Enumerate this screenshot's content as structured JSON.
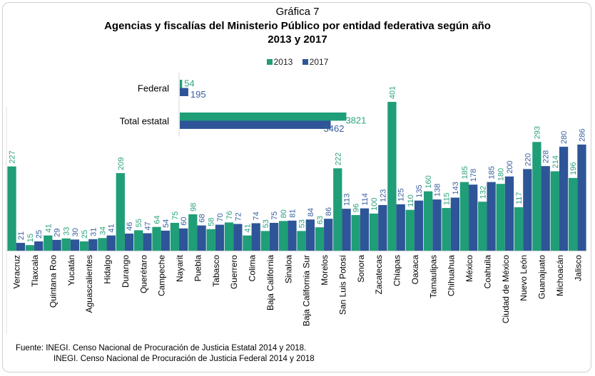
{
  "title": "Gráfica 7",
  "subtitle_line1": "Agencias y fiscalías del Ministerio Público por entidad federativa según año",
  "subtitle_line2": "2013 y 2017",
  "colors": {
    "s2013": "#1f9e78",
    "s2017": "#2e5597",
    "axis": "#d9d9d9"
  },
  "legend": [
    {
      "label": "2013",
      "color": "#1f9e78"
    },
    {
      "label": "2017",
      "color": "#2e5597"
    }
  ],
  "source": {
    "line1": "Fuente:  INEGI. Censo Nacional de Procuración de Justicia Estatal 2014 y 2018.",
    "line2": "INEGI. Censo Nacional de Procuración de Justicia Federal 2014 y 2018"
  },
  "chart_data": [
    {
      "type": "bar",
      "orientation": "vertical",
      "title": "Agencias y fiscalías del Ministerio Público por entidad federativa según año 2013 y 2017",
      "xlabel": "",
      "ylabel": "",
      "ylim": [
        0,
        401
      ],
      "grid": false,
      "legend_position": "top",
      "categories": [
        "Veracruz",
        "Tlaxcala",
        "Quintana Roo",
        "Yucatán",
        "Aguascalientes",
        "Hidalgo",
        "Durango",
        "Querétaro",
        "Campeche",
        "Nayarit",
        "Puebla",
        "Tabasco",
        "Guerrero",
        "Colima",
        "Baja California",
        "Sinaloa",
        "Baja California Sur",
        "Morelos",
        "San Luis Potosí",
        "Sonora",
        "Zacatecas",
        "Chiapas",
        "Oaxaca",
        "Tamaulipas",
        "Chihuahua",
        "México",
        "Coahuila",
        "Ciudad de México",
        "Nuevo León",
        "Guanajuato",
        "Michoacán",
        "Jalisco"
      ],
      "series": [
        {
          "name": "2013",
          "values": [
            227,
            15,
            41,
            33,
            25,
            34,
            209,
            55,
            64,
            75,
            98,
            58,
            76,
            41,
            53,
            80,
            53,
            63,
            222,
            96,
            100,
            401,
            110,
            160,
            115,
            185,
            132,
            180,
            117,
            293,
            214,
            196
          ]
        },
        {
          "name": "2017",
          "values": [
            21,
            25,
            29,
            30,
            31,
            41,
            46,
            47,
            54,
            60,
            68,
            70,
            72,
            74,
            75,
            81,
            84,
            86,
            113,
            114,
            123,
            125,
            135,
            138,
            143,
            178,
            185,
            200,
            220,
            228,
            280,
            286
          ]
        }
      ]
    },
    {
      "type": "bar",
      "orientation": "horizontal",
      "categories": [
        "Federal",
        "Total estatal"
      ],
      "series": [
        {
          "name": "2013",
          "values": [
            54,
            3821
          ]
        },
        {
          "name": "2017",
          "values": [
            195,
            3462
          ]
        }
      ]
    }
  ]
}
